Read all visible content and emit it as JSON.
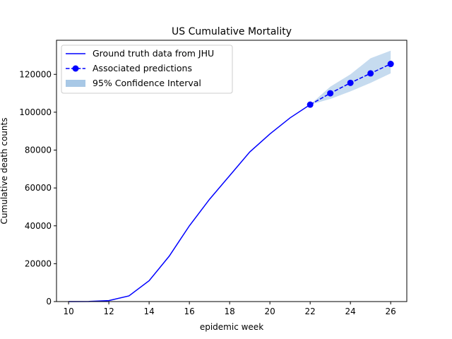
{
  "chart_data": {
    "type": "line",
    "title": "US Cumulative Mortality",
    "xlabel": "epidemic week",
    "ylabel": "Cumulative death counts",
    "xlim": [
      9.4,
      26.8
    ],
    "ylim": [
      0,
      138000
    ],
    "xticks": [
      10,
      12,
      14,
      16,
      18,
      20,
      22,
      24,
      26
    ],
    "yticks": [
      0,
      20000,
      40000,
      60000,
      80000,
      100000,
      120000
    ],
    "grid": false,
    "legend_position": "top-left",
    "series": [
      {
        "name": "Ground truth data from JHU",
        "style": "solid",
        "color": "#0000ff",
        "x": [
          10,
          11,
          12,
          13,
          14,
          15,
          16,
          17,
          18,
          19,
          20,
          21,
          22
        ],
        "y": [
          0,
          50,
          500,
          3000,
          11000,
          24000,
          40000,
          54000,
          66500,
          79000,
          88500,
          97000,
          104000
        ]
      },
      {
        "name": "Associated predictions",
        "style": "dashed",
        "marker": "circle",
        "color": "#0000ff",
        "x": [
          22,
          23,
          24,
          25,
          26
        ],
        "y": [
          104000,
          110000,
          115500,
          120500,
          125500
        ]
      }
    ],
    "band": {
      "name": "95% Confidence Interval",
      "color": "#a8c8e6",
      "x": [
        22,
        23,
        24,
        25,
        26
      ],
      "lower": [
        104000,
        107000,
        111000,
        115500,
        120500
      ],
      "upper": [
        104000,
        113500,
        120000,
        128500,
        132500
      ]
    }
  }
}
